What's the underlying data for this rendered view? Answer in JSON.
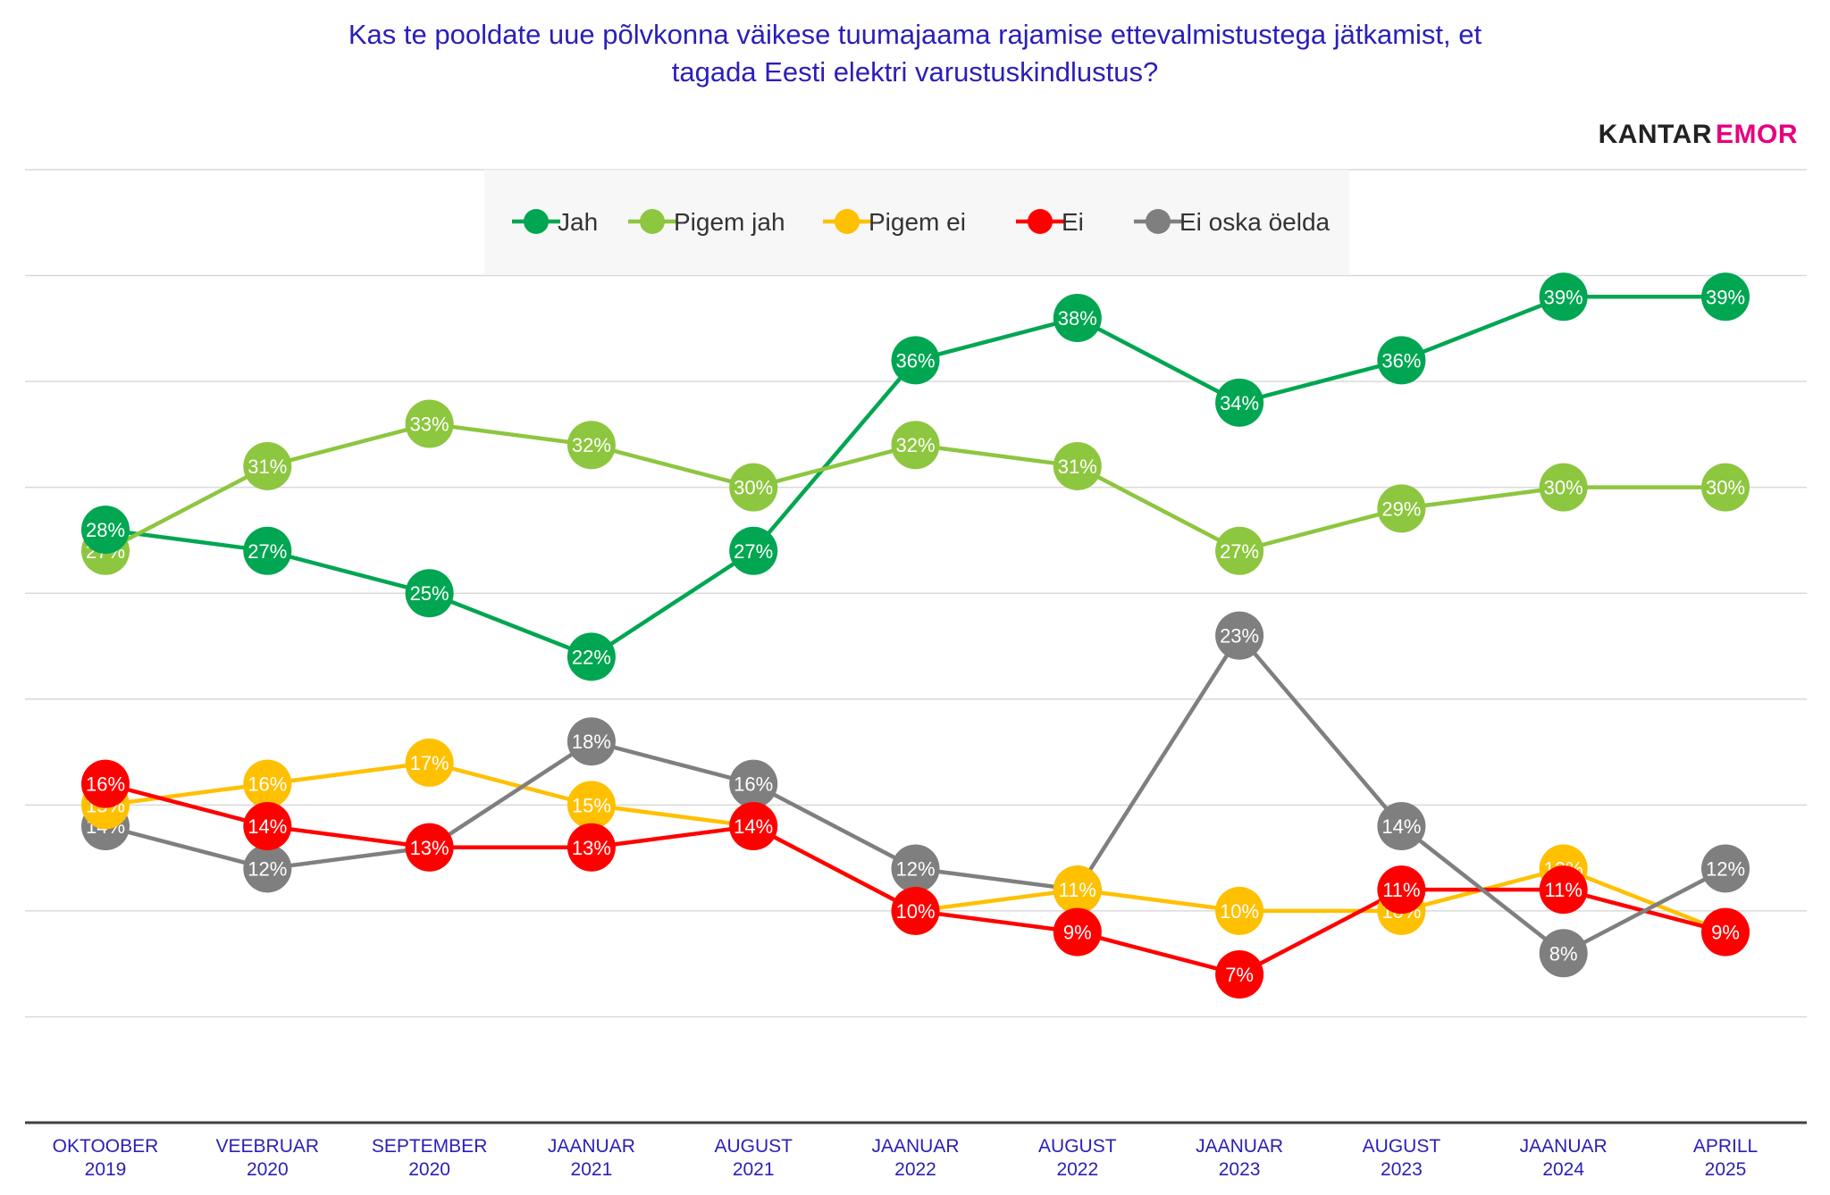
{
  "title_lines": [
    "Kas te pooldate uue põlvkonna väikese tuumajaama rajamise ettevalmistustega jätkamist, et",
    "tagada Eesti elektri varustuskindlustus?"
  ],
  "brand": {
    "part1": "KANTAR",
    "part2": "EMOR",
    "color1": "#222222",
    "color2": "#e6007e"
  },
  "chart_data": {
    "type": "line",
    "title": "Kas te pooldate uue põlvkonna väikese tuumajaama rajamise ettevalmistustega jätkamist, et tagada Eesti elektri varustuskindlustus?",
    "categories": [
      [
        "OKTOOBER",
        "2019"
      ],
      [
        "VEEBRUAR",
        "2020"
      ],
      [
        "SEPTEMBER",
        "2020"
      ],
      [
        "JAANUAR",
        "2021"
      ],
      [
        "AUGUST",
        "2021"
      ],
      [
        "JAANUAR",
        "2022"
      ],
      [
        "AUGUST",
        "2022"
      ],
      [
        "JAANUAR",
        "2023"
      ],
      [
        "AUGUST",
        "2023"
      ],
      [
        "JAANUAR",
        "2024"
      ],
      [
        "APRILL",
        "2025"
      ]
    ],
    "ylim": [
      0,
      45
    ],
    "grid": true,
    "legend_position": "top-center",
    "unit_suffix": "%",
    "series": [
      {
        "name": "Jah",
        "color": "#00a651",
        "values": [
          28,
          27,
          25,
          22,
          27,
          36,
          38,
          34,
          36,
          39,
          39
        ]
      },
      {
        "name": "Pigem jah",
        "color": "#8dc63f",
        "values": [
          27,
          31,
          33,
          32,
          30,
          32,
          31,
          27,
          29,
          30,
          30
        ]
      },
      {
        "name": "Pigem ei",
        "color": "#ffc000",
        "values": [
          15,
          16,
          17,
          15,
          14,
          10,
          11,
          10,
          10,
          12,
          9
        ]
      },
      {
        "name": "Ei",
        "color": "#ff0000",
        "values": [
          16,
          14,
          13,
          13,
          14,
          10,
          9,
          7,
          11,
          11,
          9
        ]
      },
      {
        "name": "Ei oska öelda",
        "color": "#7f7f7f",
        "values": [
          14,
          12,
          13,
          18,
          16,
          12,
          11,
          23,
          14,
          8,
          12
        ]
      }
    ],
    "hidden_labels": [
      [
        2,
        4
      ],
      [
        2,
        10
      ]
    ]
  }
}
